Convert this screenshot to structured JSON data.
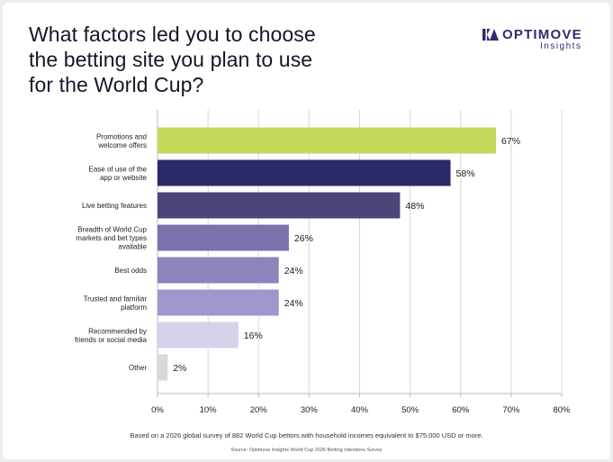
{
  "title_lines": [
    "What factors led you to choose",
    "the betting site you plan to use",
    "for the World Cup?"
  ],
  "logo": {
    "name": "OPTIMOVE",
    "sub": "Insights",
    "icon": "optimove-logo-icon",
    "color": "#2f2a70"
  },
  "chart_data": {
    "type": "bar",
    "orientation": "horizontal",
    "categories": [
      [
        "Promotions and",
        "welcome offers"
      ],
      [
        "Ease of use of the",
        "app or website"
      ],
      [
        "Live betting features"
      ],
      [
        "Breadth of World Cup",
        "markets and bet types",
        "available"
      ],
      [
        "Best odds"
      ],
      [
        "Trusted and familiar",
        "platform"
      ],
      [
        "Recommended by",
        "friends or social media"
      ],
      [
        "Other"
      ]
    ],
    "values": [
      67,
      58,
      48,
      26,
      24,
      24,
      16,
      2
    ],
    "value_labels": [
      "67%",
      "58%",
      "48%",
      "26%",
      "24%",
      "24%",
      "16%",
      "2%"
    ],
    "colors": [
      "#c3d95a",
      "#2b2a6b",
      "#4a4678",
      "#7b71ad",
      "#8c84bb",
      "#9f97cc",
      "#d6d2ea",
      "#d9d9d9"
    ],
    "xlim": [
      0,
      80
    ],
    "xticks": [
      "0%",
      "10%",
      "20%",
      "30%",
      "40%",
      "50%",
      "60%",
      "70%",
      "80%"
    ],
    "grid": true
  },
  "footnote": "Based on a 2026 global survey of 882 World Cup bettors with household incomes equivalent to $75,000 USD or more.",
  "source": "Source: Optimove Insights World Cup 2026 Betting Intentions Survey"
}
